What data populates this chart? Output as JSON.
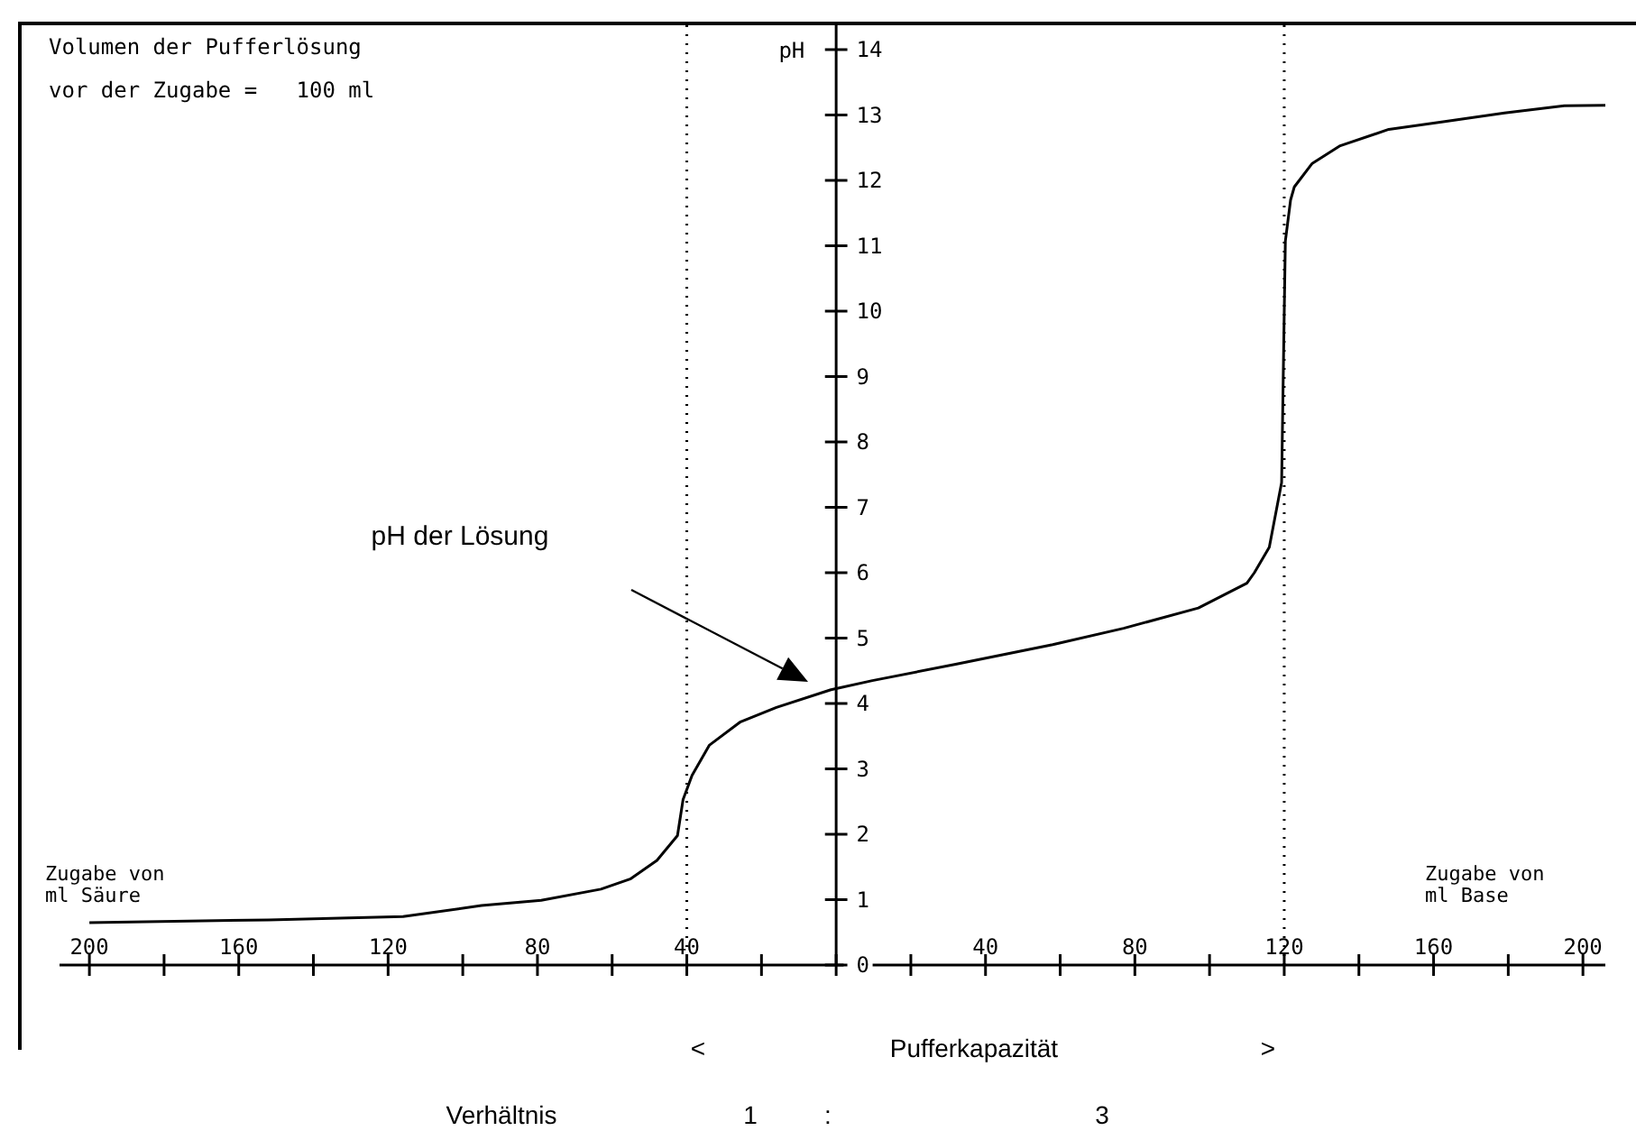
{
  "chart_data": {
    "type": "line",
    "ylabel": "pH",
    "x": [
      -200,
      -152,
      -116,
      -95,
      -79,
      -63,
      -55,
      -48,
      -42.5,
      -41,
      -38.6,
      -34,
      -25.6,
      -16,
      -1.4,
      9.7,
      32,
      58,
      77,
      97,
      110,
      112,
      116,
      119.3,
      119.8,
      120.3,
      121.7,
      122.7,
      127.5,
      135,
      148,
      163,
      179,
      195,
      206
    ],
    "series": [
      {
        "color": "#000000",
        "values": [
          0.65,
          0.69,
          0.74,
          0.91,
          0.99,
          1.16,
          1.32,
          1.6,
          1.98,
          2.53,
          2.9,
          3.36,
          3.72,
          3.94,
          4.21,
          4.35,
          4.6,
          4.9,
          5.15,
          5.46,
          5.84,
          6.0,
          6.39,
          7.38,
          9.23,
          11.07,
          11.7,
          11.9,
          12.26,
          12.53,
          12.78,
          12.9,
          13.03,
          13.14,
          13.15
        ]
      }
    ],
    "xlim": [
      -208,
      206
    ],
    "ylim": [
      0,
      14.4
    ],
    "xticks": [
      {
        "value": -200,
        "label": "200"
      },
      {
        "value": -180,
        "label": null
      },
      {
        "value": -160,
        "label": "160"
      },
      {
        "value": -140,
        "label": null
      },
      {
        "value": -120,
        "label": "120"
      },
      {
        "value": -100,
        "label": null
      },
      {
        "value": -80,
        "label": "80"
      },
      {
        "value": -60,
        "label": null
      },
      {
        "value": -40,
        "label": "40"
      },
      {
        "value": -20,
        "label": null
      },
      {
        "value": 0,
        "label": null
      },
      {
        "value": 20,
        "label": null
      },
      {
        "value": 40,
        "label": "40"
      },
      {
        "value": 60,
        "label": null
      },
      {
        "value": 80,
        "label": "80"
      },
      {
        "value": 100,
        "label": null
      },
      {
        "value": 120,
        "label": "120"
      },
      {
        "value": 140,
        "label": null
      },
      {
        "value": 160,
        "label": "160"
      },
      {
        "value": 180,
        "label": null
      },
      {
        "value": 200,
        "label": "200"
      }
    ],
    "yticks": [
      0,
      1,
      2,
      3,
      4,
      5,
      6,
      7,
      8,
      9,
      10,
      11,
      12,
      13,
      14
    ],
    "ref_lines": [
      {
        "axis": "x",
        "value": -40,
        "line_style": "dotted",
        "color": "#000000"
      },
      {
        "axis": "x",
        "value": 120,
        "line_style": "dotted",
        "color": "#000000"
      }
    ],
    "marker": "none",
    "line_style": "solid",
    "grid": false,
    "annotations": [
      "Volumen der Pufferlösung",
      "vor der Zugabe =   100 ml",
      "pH der Lösung",
      "Zugabe von\nml Säure",
      "Zugabe von\nml Base",
      "<",
      "Pufferkapazität",
      ">",
      "Verhältnis",
      "1",
      ":",
      "3"
    ]
  }
}
